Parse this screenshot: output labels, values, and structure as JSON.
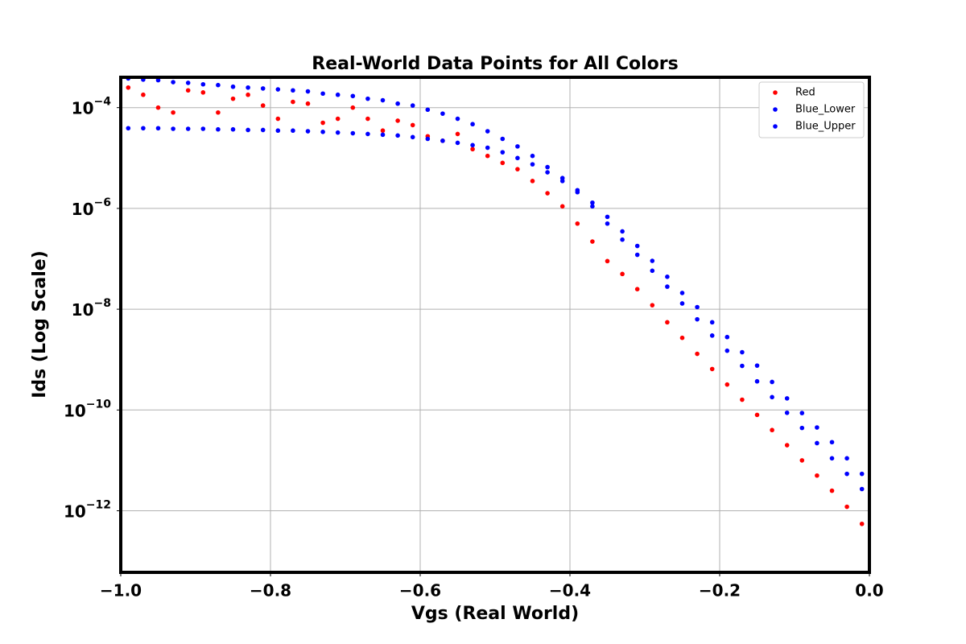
{
  "chart_data": {
    "type": "scatter",
    "title": "Real-World Data Points for All Colors",
    "xlabel": "Vgs (Real World)",
    "ylabel": "Ids (Log Scale)",
    "yscale": "log",
    "grid": true,
    "legend": "upper right",
    "xlim": [
      -1.0,
      0.0
    ],
    "xticks": [
      {
        "value": -1.0,
        "label": "−1.0"
      },
      {
        "value": -0.8,
        "label": "−0.8"
      },
      {
        "value": -0.6,
        "label": "−0.6"
      },
      {
        "value": -0.4,
        "label": "−0.4"
      },
      {
        "value": -0.2,
        "label": "−0.2"
      },
      {
        "value": 0.0,
        "label": "0.0"
      }
    ],
    "ylim": [
      6e-14,
      0.0004
    ],
    "yticks": [
      {
        "value": 0.0001,
        "label": "10−4"
      },
      {
        "value": 1e-06,
        "label": "10−6"
      },
      {
        "value": 1e-08,
        "label": "10−8"
      },
      {
        "value": 1e-10,
        "label": "10−10"
      },
      {
        "value": 1e-12,
        "label": "10−12"
      }
    ],
    "x": [
      -0.99,
      -0.97,
      -0.95,
      -0.93,
      -0.91,
      -0.89,
      -0.87,
      -0.85,
      -0.83,
      -0.81,
      -0.79,
      -0.77,
      -0.75,
      -0.73,
      -0.71,
      -0.69,
      -0.67,
      -0.65,
      -0.63,
      -0.61,
      -0.59,
      -0.57,
      -0.55,
      -0.53,
      -0.51,
      -0.49,
      -0.47,
      -0.45,
      -0.43,
      -0.41,
      -0.39,
      -0.37,
      -0.35,
      -0.33,
      -0.31,
      -0.29,
      -0.27,
      -0.25,
      -0.23,
      -0.21,
      -0.19,
      -0.17,
      -0.15,
      -0.13,
      -0.11,
      -0.09,
      -0.07,
      -0.05,
      -0.03,
      -0.01
    ],
    "series": [
      {
        "name": "Red",
        "color": "#ff0000",
        "values": [
          0.00025,
          0.00018,
          0.0001,
          8e-05,
          0.00022,
          0.0002,
          8e-05,
          0.00015,
          0.00018,
          0.00011,
          6e-05,
          0.00013,
          0.00012,
          5e-05,
          6e-05,
          0.0001,
          6e-05,
          3.5e-05,
          5.5e-05,
          4.5e-05,
          2.7e-05,
          2.2e-05,
          3e-05,
          1.5e-05,
          1.1e-05,
          8e-06,
          6e-06,
          3.5e-06,
          2e-06,
          1.1e-06,
          5e-07,
          2.2e-07,
          9e-08,
          5e-08,
          2.5e-08,
          1.2e-08,
          5.5e-09,
          2.7e-09,
          1.3e-09,
          6.5e-10,
          3.2e-10,
          1.6e-10,
          8e-11,
          4e-11,
          2e-11,
          1e-11,
          5e-12,
          2.5e-12,
          1.2e-12,
          5.5e-13
        ]
      },
      {
        "name": "Blue_Lower",
        "color": "#0000ff",
        "values": [
          3.9e-05,
          3.9e-05,
          3.9e-05,
          3.8e-05,
          3.8e-05,
          3.8e-05,
          3.7e-05,
          3.7e-05,
          3.6e-05,
          3.6e-05,
          3.5e-05,
          3.5e-05,
          3.4e-05,
          3.3e-05,
          3.2e-05,
          3.1e-05,
          3e-05,
          2.9e-05,
          2.8e-05,
          2.6e-05,
          2.4e-05,
          2.2e-05,
          2e-05,
          1.8e-05,
          1.6e-05,
          1.3e-05,
          1e-05,
          7.5e-06,
          5.2e-06,
          3.5e-06,
          2.1e-06,
          1.1e-06,
          5e-07,
          2.4e-07,
          1.2e-07,
          5.8e-08,
          2.8e-08,
          1.3e-08,
          6.3e-09,
          3e-09,
          1.5e-09,
          7.5e-10,
          3.7e-10,
          1.8e-10,
          8.8e-11,
          4.4e-11,
          2.2e-11,
          1.1e-11,
          5.4e-12,
          2.7e-12
        ]
      },
      {
        "name": "Blue_Upper",
        "color": "#0000ff",
        "values": [
          0.00038,
          0.00036,
          0.00035,
          0.00032,
          0.00031,
          0.00029,
          0.00028,
          0.00026,
          0.00025,
          0.00024,
          0.00023,
          0.00022,
          0.00021,
          0.00019,
          0.00018,
          0.00017,
          0.00015,
          0.00014,
          0.00012,
          0.00011,
          9.1e-05,
          7.6e-05,
          6e-05,
          4.7e-05,
          3.4e-05,
          2.4e-05,
          1.7e-05,
          1.1e-05,
          6.6e-06,
          4e-06,
          2.3e-06,
          1.3e-06,
          6.8e-07,
          3.5e-07,
          1.8e-07,
          9.1e-08,
          4.4e-08,
          2.1e-08,
          1.1e-08,
          5.5e-09,
          2.8e-09,
          1.4e-09,
          7.6e-10,
          3.6e-10,
          1.7e-10,
          8.7e-11,
          4.5e-11,
          2.3e-11,
          1.1e-11,
          5.4e-12
        ]
      }
    ]
  }
}
